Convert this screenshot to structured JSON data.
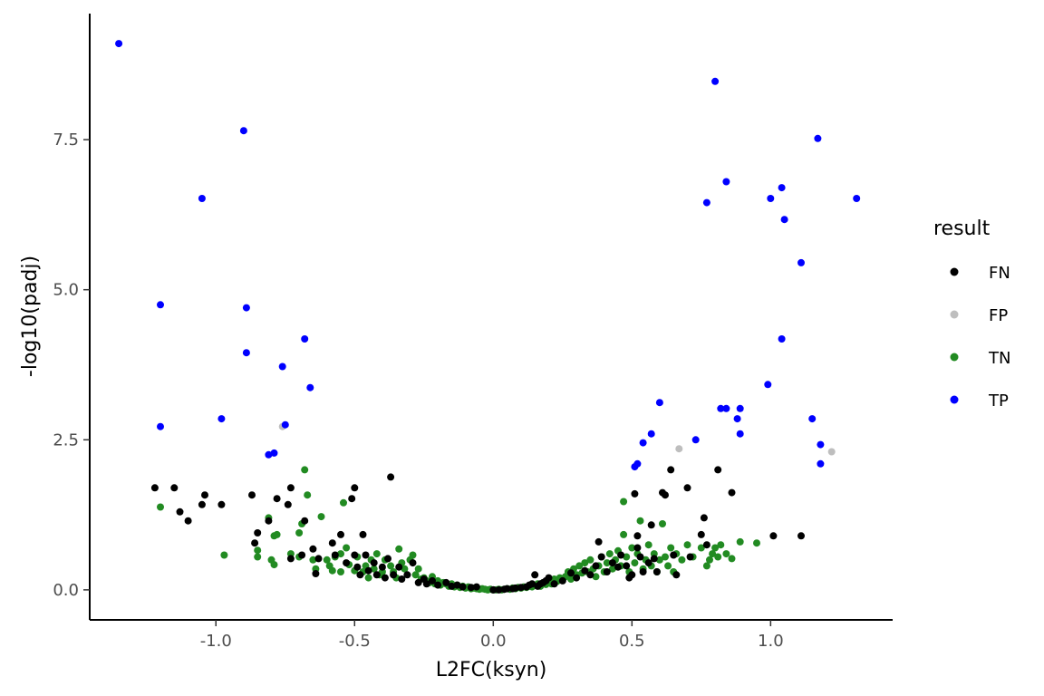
{
  "chart_data": {
    "type": "scatter",
    "xlabel": "L2FC(ksyn)",
    "ylabel": "-log10(padj)",
    "xlim": [
      -1.455,
      1.44
    ],
    "ylim": [
      -0.5,
      9.6
    ],
    "x_ticks": [
      -1.0,
      -0.5,
      0.0,
      0.5,
      1.0
    ],
    "x_tick_labels": [
      "-1.0",
      "-0.5",
      "0.0",
      "0.5",
      "1.0"
    ],
    "y_ticks": [
      0.0,
      2.5,
      5.0,
      7.5
    ],
    "y_tick_labels": [
      "0.0",
      "2.5",
      "5.0",
      "7.5"
    ],
    "grid": false,
    "legend": {
      "title": "result",
      "position": "right",
      "entries": [
        {
          "label": "FN",
          "color": "#000000"
        },
        {
          "label": "FP",
          "color": "#bebebe"
        },
        {
          "label": "TN",
          "color": "#228b22"
        },
        {
          "label": "TP",
          "color": "#0000ff"
        }
      ]
    },
    "series": [
      {
        "name": "TN",
        "color": "#228b22",
        "points": [
          [
            -1.2,
            1.38
          ],
          [
            -0.97,
            0.58
          ],
          [
            -0.85,
            0.66
          ],
          [
            -0.85,
            0.55
          ],
          [
            -0.81,
            1.2
          ],
          [
            -0.8,
            0.5
          ],
          [
            -0.79,
            0.42
          ],
          [
            -0.79,
            0.9
          ],
          [
            -0.78,
            0.92
          ],
          [
            -0.73,
            0.6
          ],
          [
            -0.7,
            0.55
          ],
          [
            -0.7,
            0.95
          ],
          [
            -0.69,
            1.1
          ],
          [
            -0.68,
            2.0
          ],
          [
            -0.67,
            1.58
          ],
          [
            -0.65,
            0.5
          ],
          [
            -0.64,
            0.35
          ],
          [
            -0.62,
            1.22
          ],
          [
            -0.6,
            0.5
          ],
          [
            -0.59,
            0.4
          ],
          [
            -0.58,
            0.32
          ],
          [
            -0.57,
            0.55
          ],
          [
            -0.55,
            0.6
          ],
          [
            -0.54,
            1.45
          ],
          [
            -0.55,
            0.3
          ],
          [
            -0.53,
            0.7
          ],
          [
            -0.52,
            0.42
          ],
          [
            -0.5,
            0.32
          ],
          [
            -0.49,
            0.55
          ],
          [
            -0.47,
            0.3
          ],
          [
            -0.46,
            0.4
          ],
          [
            -0.45,
            0.2
          ],
          [
            -0.44,
            0.5
          ],
          [
            -0.43,
            0.35
          ],
          [
            -0.42,
            0.6
          ],
          [
            -0.41,
            0.25
          ],
          [
            -0.4,
            0.3
          ],
          [
            -0.39,
            0.5
          ],
          [
            -0.37,
            0.4
          ],
          [
            -0.36,
            0.3
          ],
          [
            -0.35,
            0.2
          ],
          [
            -0.34,
            0.68
          ],
          [
            -0.33,
            0.45
          ],
          [
            -0.32,
            0.35
          ],
          [
            -0.3,
            0.5
          ],
          [
            -0.29,
            0.58
          ],
          [
            -0.28,
            0.25
          ],
          [
            -0.27,
            0.35
          ],
          [
            -0.26,
            0.18
          ],
          [
            -0.25,
            0.2
          ],
          [
            -0.24,
            0.15
          ],
          [
            -0.23,
            0.12
          ],
          [
            -0.22,
            0.22
          ],
          [
            -0.21,
            0.1
          ],
          [
            -0.2,
            0.15
          ],
          [
            -0.19,
            0.08
          ],
          [
            -0.18,
            0.12
          ],
          [
            -0.17,
            0.1
          ],
          [
            -0.16,
            0.06
          ],
          [
            -0.15,
            0.1
          ],
          [
            -0.14,
            0.05
          ],
          [
            -0.13,
            0.08
          ],
          [
            -0.12,
            0.04
          ],
          [
            -0.11,
            0.06
          ],
          [
            -0.1,
            0.03
          ],
          [
            -0.09,
            0.05
          ],
          [
            -0.08,
            0.02
          ],
          [
            -0.07,
            0.03
          ],
          [
            -0.06,
            0.02
          ],
          [
            -0.05,
            0.01
          ],
          [
            -0.04,
            0.02
          ],
          [
            -0.03,
            0.01
          ],
          [
            -0.02,
            0.0
          ],
          [
            -0.01,
            0.01
          ],
          [
            0.0,
            0.0
          ],
          [
            0.01,
            0.0
          ],
          [
            0.02,
            0.01
          ],
          [
            0.03,
            0.0
          ],
          [
            0.04,
            0.01
          ],
          [
            0.05,
            0.02
          ],
          [
            0.06,
            0.01
          ],
          [
            0.07,
            0.03
          ],
          [
            0.08,
            0.02
          ],
          [
            0.09,
            0.04
          ],
          [
            0.1,
            0.03
          ],
          [
            0.11,
            0.05
          ],
          [
            0.12,
            0.04
          ],
          [
            0.13,
            0.06
          ],
          [
            0.14,
            0.05
          ],
          [
            0.15,
            0.08
          ],
          [
            0.16,
            0.1
          ],
          [
            0.17,
            0.06
          ],
          [
            0.18,
            0.12
          ],
          [
            0.19,
            0.09
          ],
          [
            0.2,
            0.15
          ],
          [
            0.21,
            0.1
          ],
          [
            0.22,
            0.18
          ],
          [
            0.23,
            0.14
          ],
          [
            0.24,
            0.2
          ],
          [
            0.25,
            0.16
          ],
          [
            0.26,
            0.22
          ],
          [
            0.27,
            0.3
          ],
          [
            0.28,
            0.18
          ],
          [
            0.29,
            0.35
          ],
          [
            0.3,
            0.25
          ],
          [
            0.31,
            0.4
          ],
          [
            0.32,
            0.28
          ],
          [
            0.33,
            0.45
          ],
          [
            0.34,
            0.3
          ],
          [
            0.35,
            0.5
          ],
          [
            0.36,
            0.35
          ],
          [
            0.37,
            0.22
          ],
          [
            0.38,
            0.4
          ],
          [
            0.39,
            0.55
          ],
          [
            0.4,
            0.3
          ],
          [
            0.41,
            0.45
          ],
          [
            0.42,
            0.6
          ],
          [
            0.43,
            0.35
          ],
          [
            0.44,
            0.5
          ],
          [
            0.45,
            0.65
          ],
          [
            0.46,
            0.4
          ],
          [
            0.47,
            0.92
          ],
          [
            0.47,
            1.47
          ],
          [
            0.48,
            0.55
          ],
          [
            0.49,
            0.3
          ],
          [
            0.5,
            0.7
          ],
          [
            0.51,
            0.45
          ],
          [
            0.52,
            0.6
          ],
          [
            0.53,
            1.15
          ],
          [
            0.54,
            0.35
          ],
          [
            0.55,
            0.5
          ],
          [
            0.56,
            0.75
          ],
          [
            0.57,
            0.4
          ],
          [
            0.58,
            0.6
          ],
          [
            0.59,
            0.3
          ],
          [
            0.6,
            0.5
          ],
          [
            0.61,
            1.1
          ],
          [
            0.62,
            0.55
          ],
          [
            0.63,
            0.4
          ],
          [
            0.64,
            0.7
          ],
          [
            0.65,
            0.3
          ],
          [
            0.66,
            0.6
          ],
          [
            0.68,
            0.5
          ],
          [
            0.7,
            0.75
          ],
          [
            0.72,
            0.55
          ],
          [
            0.75,
            0.7
          ],
          [
            0.77,
            0.4
          ],
          [
            0.78,
            0.5
          ],
          [
            0.79,
            0.6
          ],
          [
            0.8,
            0.7
          ],
          [
            0.81,
            0.55
          ],
          [
            0.82,
            0.75
          ],
          [
            0.84,
            0.6
          ],
          [
            0.86,
            0.52
          ],
          [
            0.89,
            0.8
          ],
          [
            0.95,
            0.78
          ]
        ]
      },
      {
        "name": "FN",
        "color": "#000000",
        "points": [
          [
            -1.22,
            1.7
          ],
          [
            -1.15,
            1.7
          ],
          [
            -1.13,
            1.3
          ],
          [
            -1.1,
            1.15
          ],
          [
            -1.04,
            1.58
          ],
          [
            -1.05,
            1.42
          ],
          [
            -0.98,
            1.42
          ],
          [
            -0.87,
            1.58
          ],
          [
            -0.86,
            0.78
          ],
          [
            -0.85,
            0.95
          ],
          [
            -0.81,
            1.15
          ],
          [
            -0.78,
            1.52
          ],
          [
            -0.74,
            1.42
          ],
          [
            -0.73,
            1.7
          ],
          [
            -0.73,
            0.52
          ],
          [
            -0.69,
            0.58
          ],
          [
            -0.68,
            1.15
          ],
          [
            -0.65,
            0.68
          ],
          [
            -0.64,
            0.27
          ],
          [
            -0.63,
            0.52
          ],
          [
            -0.58,
            0.78
          ],
          [
            -0.57,
            0.58
          ],
          [
            -0.55,
            0.92
          ],
          [
            -0.53,
            0.45
          ],
          [
            -0.51,
            1.52
          ],
          [
            -0.5,
            1.7
          ],
          [
            -0.5,
            0.58
          ],
          [
            -0.49,
            0.38
          ],
          [
            -0.48,
            0.25
          ],
          [
            -0.47,
            0.92
          ],
          [
            -0.46,
            0.58
          ],
          [
            -0.45,
            0.32
          ],
          [
            -0.43,
            0.45
          ],
          [
            -0.42,
            0.25
          ],
          [
            -0.4,
            0.38
          ],
          [
            -0.39,
            0.2
          ],
          [
            -0.38,
            0.52
          ],
          [
            -0.37,
            1.88
          ],
          [
            -0.36,
            0.25
          ],
          [
            -0.34,
            0.38
          ],
          [
            -0.33,
            0.18
          ],
          [
            -0.31,
            0.25
          ],
          [
            -0.29,
            0.45
          ],
          [
            -0.27,
            0.12
          ],
          [
            -0.25,
            0.18
          ],
          [
            -0.24,
            0.1
          ],
          [
            -0.22,
            0.15
          ],
          [
            -0.2,
            0.08
          ],
          [
            -0.17,
            0.12
          ],
          [
            -0.15,
            0.06
          ],
          [
            -0.13,
            0.08
          ],
          [
            -0.11,
            0.05
          ],
          [
            -0.08,
            0.04
          ],
          [
            -0.06,
            0.05
          ],
          [
            0.0,
            0.0
          ],
          [
            0.02,
            0.0
          ],
          [
            0.04,
            0.01
          ],
          [
            0.05,
            0.02
          ],
          [
            0.07,
            0.02
          ],
          [
            0.08,
            0.03
          ],
          [
            0.1,
            0.04
          ],
          [
            0.12,
            0.05
          ],
          [
            0.13,
            0.08
          ],
          [
            0.14,
            0.1
          ],
          [
            0.15,
            0.25
          ],
          [
            0.16,
            0.06
          ],
          [
            0.17,
            0.1
          ],
          [
            0.18,
            0.12
          ],
          [
            0.19,
            0.15
          ],
          [
            0.2,
            0.2
          ],
          [
            0.22,
            0.1
          ],
          [
            0.25,
            0.15
          ],
          [
            0.28,
            0.28
          ],
          [
            0.3,
            0.2
          ],
          [
            0.33,
            0.32
          ],
          [
            0.35,
            0.25
          ],
          [
            0.37,
            0.4
          ],
          [
            0.38,
            0.8
          ],
          [
            0.39,
            0.55
          ],
          [
            0.41,
            0.3
          ],
          [
            0.43,
            0.45
          ],
          [
            0.45,
            0.38
          ],
          [
            0.46,
            0.58
          ],
          [
            0.48,
            0.4
          ],
          [
            0.49,
            0.2
          ],
          [
            0.5,
            0.25
          ],
          [
            0.51,
            1.6
          ],
          [
            0.52,
            0.9
          ],
          [
            0.52,
            0.7
          ],
          [
            0.53,
            0.55
          ],
          [
            0.54,
            0.3
          ],
          [
            0.56,
            0.45
          ],
          [
            0.57,
            1.08
          ],
          [
            0.58,
            0.52
          ],
          [
            0.59,
            0.3
          ],
          [
            0.61,
            1.62
          ],
          [
            0.62,
            1.58
          ],
          [
            0.64,
            2.0
          ],
          [
            0.65,
            0.58
          ],
          [
            0.66,
            0.25
          ],
          [
            0.7,
            1.7
          ],
          [
            0.71,
            0.55
          ],
          [
            0.75,
            0.92
          ],
          [
            0.76,
            1.2
          ],
          [
            0.77,
            0.75
          ],
          [
            0.81,
            2.0
          ],
          [
            0.86,
            1.62
          ],
          [
            1.01,
            0.9
          ],
          [
            1.11,
            0.9
          ]
        ]
      },
      {
        "name": "FP",
        "color": "#bebebe",
        "points": [
          [
            -0.76,
            2.72
          ],
          [
            0.67,
            2.35
          ],
          [
            1.22,
            2.3
          ]
        ]
      },
      {
        "name": "TP",
        "color": "#0000ff",
        "points": [
          [
            -1.35,
            9.1
          ],
          [
            -1.2,
            4.75
          ],
          [
            -1.2,
            2.72
          ],
          [
            -1.05,
            6.52
          ],
          [
            -0.98,
            2.85
          ],
          [
            -0.9,
            7.65
          ],
          [
            -0.89,
            4.7
          ],
          [
            -0.89,
            3.95
          ],
          [
            -0.81,
            2.25
          ],
          [
            -0.79,
            2.28
          ],
          [
            -0.76,
            3.72
          ],
          [
            -0.75,
            2.75
          ],
          [
            -0.68,
            4.18
          ],
          [
            -0.66,
            3.37
          ],
          [
            0.51,
            2.05
          ],
          [
            0.52,
            2.1
          ],
          [
            0.54,
            2.45
          ],
          [
            0.57,
            2.6
          ],
          [
            0.6,
            3.12
          ],
          [
            0.73,
            2.5
          ],
          [
            0.77,
            6.45
          ],
          [
            0.8,
            8.47
          ],
          [
            0.82,
            3.02
          ],
          [
            0.84,
            3.02
          ],
          [
            0.84,
            6.8
          ],
          [
            0.88,
            2.85
          ],
          [
            0.89,
            2.6
          ],
          [
            0.89,
            3.02
          ],
          [
            0.99,
            3.42
          ],
          [
            1.0,
            6.52
          ],
          [
            1.04,
            6.7
          ],
          [
            1.04,
            4.18
          ],
          [
            1.05,
            6.17
          ],
          [
            1.11,
            5.45
          ],
          [
            1.15,
            2.85
          ],
          [
            1.17,
            7.52
          ],
          [
            1.18,
            2.42
          ],
          [
            1.18,
            2.1
          ],
          [
            1.31,
            6.52
          ]
        ]
      }
    ]
  }
}
